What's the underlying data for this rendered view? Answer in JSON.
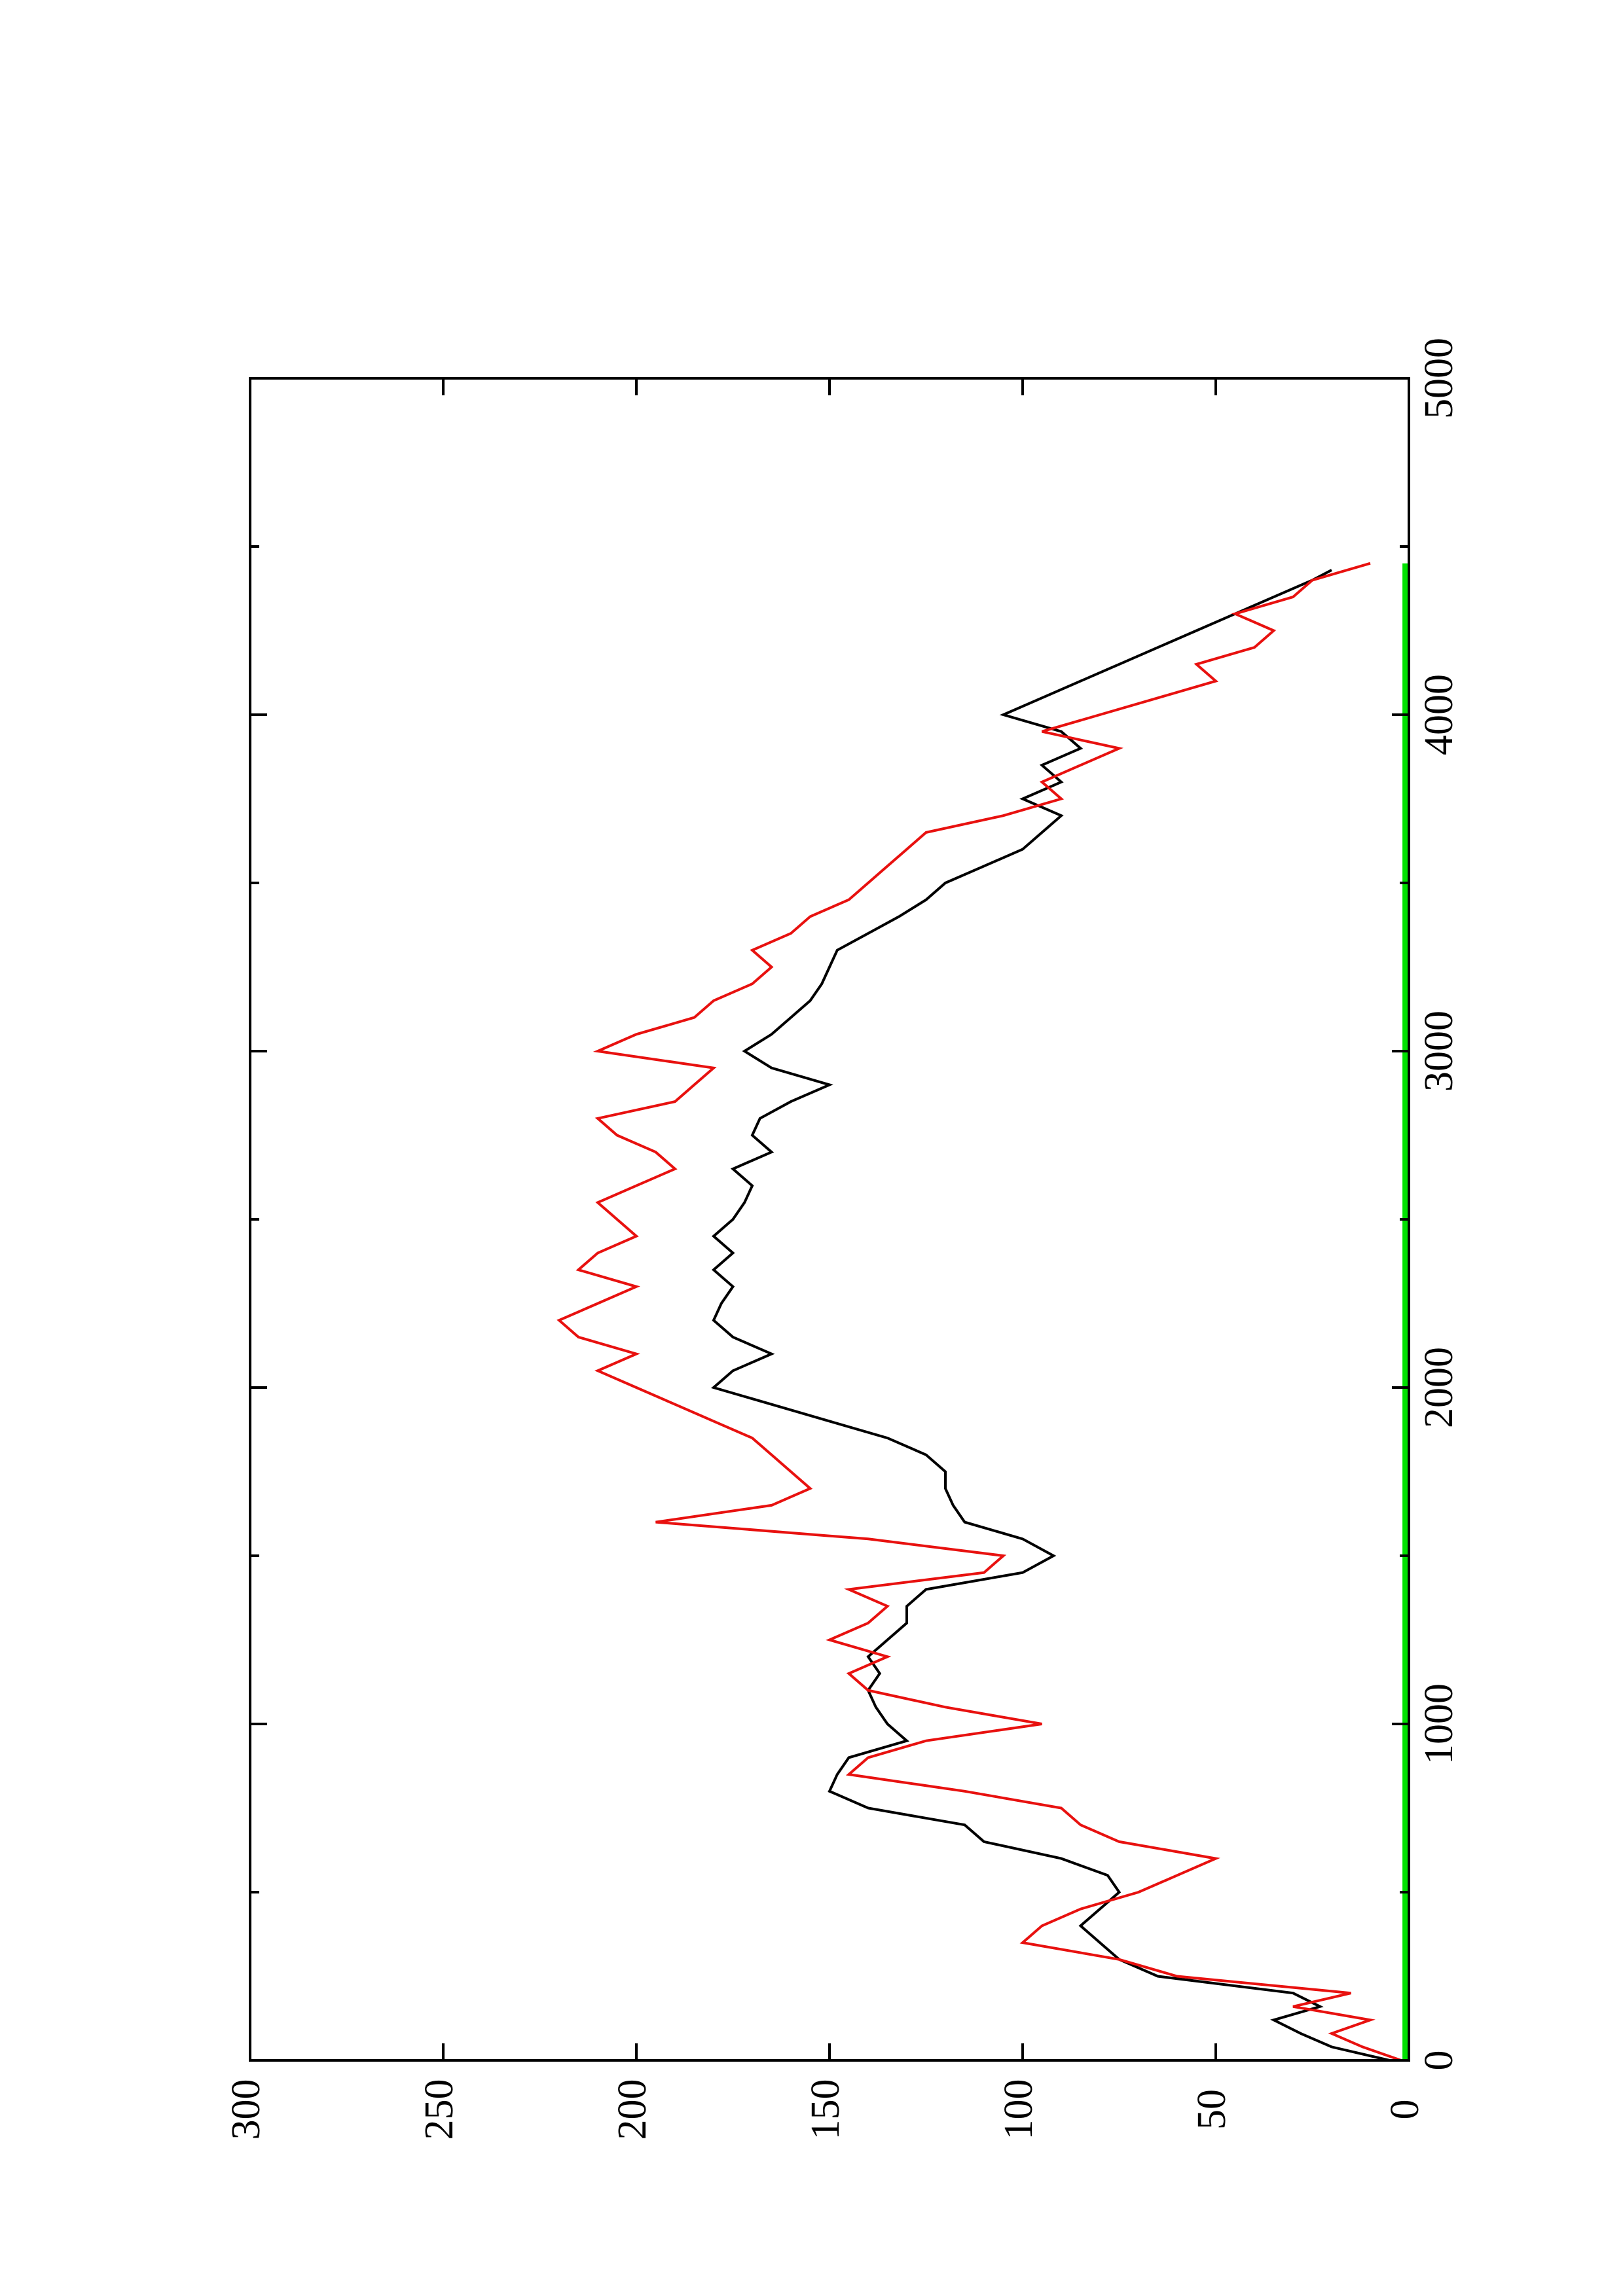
{
  "chart_data": {
    "type": "line",
    "title": "",
    "xlabel": "",
    "ylabel": "",
    "xlim": [
      0,
      5000
    ],
    "ylim": [
      0,
      300
    ],
    "x_ticks": [
      0,
      1000,
      2000,
      3000,
      4000,
      5000
    ],
    "y_ticks": [
      0,
      50,
      100,
      150,
      200,
      250,
      300
    ],
    "x_tick_labels": [
      "0",
      "1000",
      "2000",
      "3000",
      "4000",
      "5000"
    ],
    "y_tick_labels": [
      "0",
      "50",
      "100",
      "150",
      "200",
      "250",
      "300"
    ],
    "orientation": "rotated-90-counterclockwise",
    "grid": false,
    "legend": "none",
    "series": [
      {
        "color": "#000000",
        "x": [
          0,
          40,
          80,
          120,
          160,
          200,
          250,
          300,
          350,
          400,
          450,
          500,
          550,
          600,
          650,
          700,
          750,
          800,
          850,
          900,
          950,
          1000,
          1050,
          1100,
          1150,
          1200,
          1250,
          1300,
          1350,
          1400,
          1450,
          1500,
          1550,
          1600,
          1650,
          1700,
          1750,
          1800,
          1850,
          1900,
          1950,
          2000,
          2050,
          2100,
          2150,
          2200,
          2250,
          2300,
          2350,
          2400,
          2450,
          2500,
          2550,
          2600,
          2650,
          2700,
          2750,
          2800,
          2850,
          2900,
          2950,
          3000,
          3050,
          3100,
          3150,
          3200,
          3250,
          3300,
          3350,
          3400,
          3450,
          3500,
          3550,
          3600,
          3650,
          3700,
          3750,
          3800,
          3850,
          3900,
          3950,
          4000,
          4050,
          4100,
          4150,
          4200,
          4250,
          4300,
          4350,
          4400,
          4430
        ],
        "values": [
          5,
          20,
          28,
          35,
          23,
          30,
          65,
          75,
          80,
          85,
          80,
          75,
          78,
          90,
          110,
          115,
          140,
          150,
          148,
          145,
          130,
          135,
          138,
          140,
          137,
          140,
          135,
          130,
          130,
          125,
          100,
          92,
          100,
          115,
          118,
          120,
          120,
          125,
          135,
          150,
          165,
          180,
          175,
          165,
          175,
          180,
          178,
          175,
          180,
          175,
          180,
          175,
          172,
          170,
          175,
          165,
          170,
          168,
          160,
          150,
          165,
          172,
          165,
          160,
          155,
          152,
          150,
          148,
          140,
          132,
          125,
          120,
          110,
          100,
          95,
          90,
          100,
          90,
          95,
          85,
          90,
          105,
          95,
          85,
          75,
          65,
          55,
          45,
          35,
          25,
          20
        ]
      },
      {
        "color": "#e8110f",
        "x": [
          0,
          40,
          80,
          120,
          160,
          200,
          250,
          300,
          350,
          400,
          450,
          500,
          550,
          600,
          650,
          700,
          750,
          800,
          850,
          900,
          950,
          1000,
          1050,
          1100,
          1150,
          1200,
          1250,
          1300,
          1350,
          1400,
          1450,
          1500,
          1550,
          1600,
          1650,
          1700,
          1750,
          1800,
          1850,
          1900,
          1950,
          2000,
          2050,
          2100,
          2150,
          2200,
          2250,
          2300,
          2350,
          2400,
          2450,
          2500,
          2550,
          2600,
          2650,
          2700,
          2750,
          2800,
          2850,
          2900,
          2950,
          3000,
          3050,
          3100,
          3150,
          3200,
          3250,
          3300,
          3350,
          3400,
          3450,
          3500,
          3550,
          3600,
          3650,
          3700,
          3750,
          3800,
          3850,
          3900,
          3950,
          4000,
          4050,
          4100,
          4150,
          4200,
          4250,
          4300,
          4350,
          4400,
          4450
        ],
        "values": [
          2,
          12,
          20,
          10,
          30,
          15,
          60,
          75,
          100,
          95,
          85,
          70,
          60,
          50,
          75,
          85,
          90,
          115,
          145,
          140,
          125,
          95,
          120,
          140,
          145,
          135,
          150,
          140,
          135,
          145,
          110,
          105,
          140,
          195,
          165,
          155,
          160,
          165,
          170,
          180,
          190,
          200,
          210,
          200,
          215,
          220,
          210,
          200,
          215,
          210,
          200,
          205,
          210,
          200,
          190,
          195,
          205,
          210,
          190,
          185,
          180,
          210,
          200,
          185,
          180,
          170,
          165,
          170,
          160,
          155,
          145,
          140,
          135,
          130,
          125,
          105,
          90,
          95,
          85,
          75,
          95,
          80,
          65,
          50,
          55,
          40,
          35,
          45,
          30,
          25,
          10
        ]
      },
      {
        "color": "#00e000",
        "x": [
          0,
          4450
        ],
        "values": [
          1,
          1
        ]
      }
    ]
  }
}
